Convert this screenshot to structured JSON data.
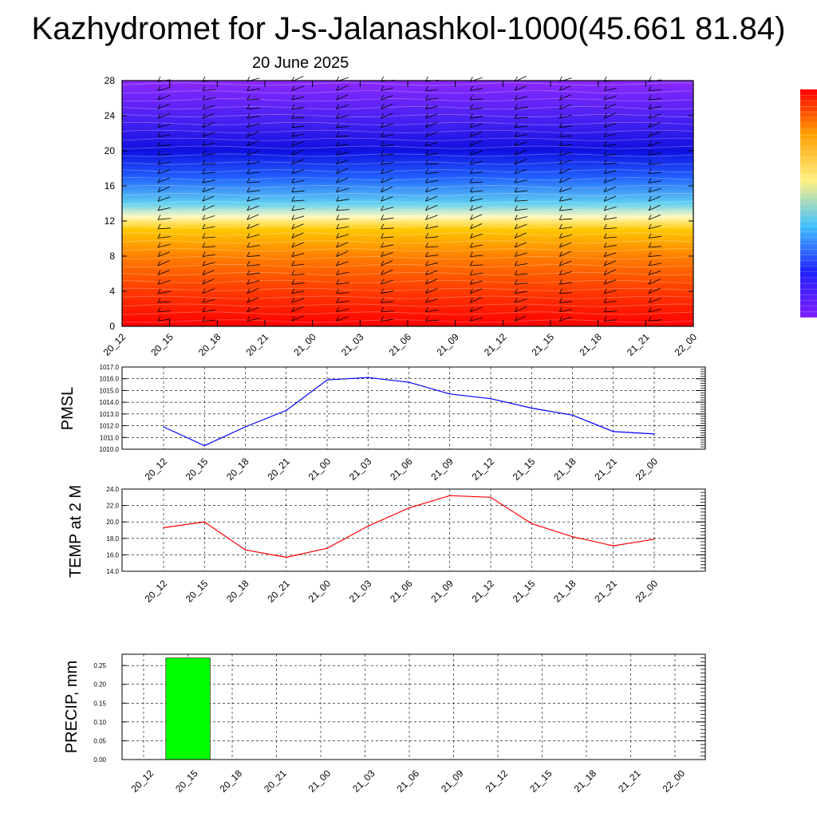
{
  "title": "Kazhydromet for J-s-Jalanashkol-1000(45.661 81.84)",
  "subtitle": "20 June 2025",
  "time_labels": [
    "20_12",
    "20_15",
    "20_18",
    "20_21",
    "21_00",
    "21_03",
    "21_06",
    "21_09",
    "21_12",
    "21_15",
    "21_18",
    "21_21",
    "22_00"
  ],
  "colors": {
    "pmsl_line": "#0000ff",
    "temp_line": "#ff0000",
    "precip_bar": "#00ff00",
    "colorbar": [
      "#7f1eff",
      "#2020ff",
      "#40c0ff",
      "#fff080",
      "#ffa000",
      "#ff0000"
    ]
  },
  "chart_data": [
    {
      "type": "heatmap",
      "name": "vertical-profile",
      "y_ticks": [
        "0",
        "4",
        "8",
        "12",
        "16",
        "20",
        "24",
        "28"
      ],
      "ylim": [
        0,
        28
      ],
      "x": [
        "20_12",
        "20_15",
        "20_18",
        "20_21",
        "21_00",
        "21_03",
        "21_06",
        "21_09",
        "21_12",
        "21_15",
        "21_18",
        "21_21",
        "22_00"
      ],
      "color_bands": [
        {
          "level": 0,
          "color": "#ff0000"
        },
        {
          "level": 4,
          "color": "#ff3a00"
        },
        {
          "level": 8,
          "color": "#ff8000"
        },
        {
          "level": 11,
          "color": "#ffc800"
        },
        {
          "level": 12.5,
          "color": "#fff8c0"
        },
        {
          "level": 14,
          "color": "#60d0f0"
        },
        {
          "level": 17,
          "color": "#2060ff"
        },
        {
          "level": 20,
          "color": "#1010e0"
        },
        {
          "level": 23,
          "color": "#4020f0"
        },
        {
          "level": 28,
          "color": "#8c28ff"
        }
      ]
    },
    {
      "type": "line",
      "ylabel": "PMSL",
      "y_ticks": [
        "1010.0",
        "1011.0",
        "1012.0",
        "1013.0",
        "1014.0",
        "1015.0",
        "1016.0",
        "1017.0"
      ],
      "ylim": [
        1010,
        1017
      ],
      "x": [
        "20_12",
        "20_15",
        "20_18",
        "20_21",
        "21_00",
        "21_03",
        "21_06",
        "21_09",
        "21_12",
        "21_15",
        "21_18",
        "21_21",
        "22_00"
      ],
      "values": [
        1011.9,
        1010.3,
        1011.9,
        1013.3,
        1015.9,
        1016.1,
        1015.7,
        1014.7,
        1014.3,
        1013.5,
        1012.9,
        1011.5,
        1011.3
      ]
    },
    {
      "type": "line",
      "ylabel": "TEMP at 2 M",
      "y_ticks": [
        "14.0",
        "16.0",
        "18.0",
        "20.0",
        "22.0",
        "24.0"
      ],
      "ylim": [
        14,
        24
      ],
      "x": [
        "20_12",
        "20_15",
        "20_18",
        "20_21",
        "21_00",
        "21_03",
        "21_06",
        "21_09",
        "21_12",
        "21_15",
        "21_18",
        "21_21",
        "22_00"
      ],
      "values": [
        19.3,
        20.0,
        16.6,
        15.7,
        16.8,
        19.5,
        21.7,
        23.2,
        23.0,
        19.8,
        18.2,
        17.1,
        17.9
      ]
    },
    {
      "type": "bar",
      "ylabel": "PRECIP, mm",
      "y_ticks": [
        "0.00",
        "0.05",
        "0.10",
        "0.15",
        "0.20",
        "0.25"
      ],
      "ylim": [
        0,
        0.28
      ],
      "categories": [
        "20_12",
        "20_15",
        "20_18",
        "20_21",
        "21_00",
        "21_03",
        "21_06",
        "21_09",
        "21_12",
        "21_15",
        "21_18",
        "21_21",
        "22_00"
      ],
      "values": [
        0,
        0.27,
        0,
        0,
        0,
        0,
        0,
        0,
        0,
        0,
        0,
        0,
        0
      ]
    }
  ]
}
